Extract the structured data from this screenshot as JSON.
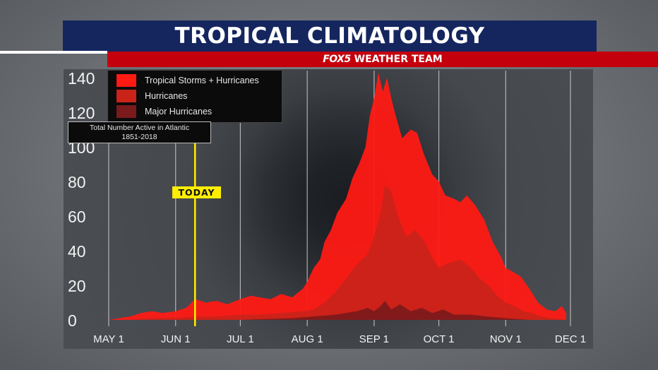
{
  "header": {
    "title": "TROPICAL CLIMATOLOGY",
    "logo": "FOX5",
    "subtitle": "WEATHER TEAM"
  },
  "info_box": {
    "line1": "Total Number Active in Atlantic",
    "line2": "1851-2018"
  },
  "today_label": "TODAY",
  "colors": {
    "title_bg": "#15265f",
    "subtitle_bg": "#c4000d",
    "today": "#ffee00",
    "tropical_storms_hurricanes": "#ff1a14",
    "hurricanes": "#c9231a",
    "major_hurricanes": "#7a1a1c"
  },
  "chart_data": {
    "type": "area",
    "x_ticks": [
      "MAY 1",
      "JUN 1",
      "JUL 1",
      "AUG 1",
      "SEP 1",
      "OCT 1",
      "NOV 1",
      "DEC 1"
    ],
    "x_tick_days": [
      0,
      31,
      61,
      92,
      123,
      153,
      184,
      214
    ],
    "y_ticks": [
      "0",
      "20",
      "40",
      "60",
      "80",
      "100",
      "120",
      "140"
    ],
    "ylim": [
      0,
      140
    ],
    "xlim": [
      -4,
      214
    ],
    "today_day": 40,
    "grid": "vertical lines at month starts",
    "legend_position": "top-left",
    "series": [
      {
        "name": "Tropical Storms + Hurricanes",
        "color": "#ff1a14",
        "x": [
          0,
          5,
          10,
          15,
          20,
          25,
          31,
          36,
          40,
          45,
          50,
          55,
          61,
          66,
          70,
          75,
          80,
          85,
          90,
          92,
          95,
          98,
          100,
          103,
          106,
          110,
          113,
          116,
          119,
          121,
          123,
          125,
          127,
          129,
          131,
          133,
          136,
          140,
          143,
          146,
          150,
          153,
          156,
          160,
          163,
          166,
          170,
          174,
          178,
          182,
          184,
          187,
          191,
          195,
          199,
          203,
          207,
          210,
          212
        ],
        "values": [
          0,
          1,
          2,
          4,
          5,
          4,
          5,
          7,
          12,
          10,
          11,
          9,
          12,
          14,
          13,
          12,
          15,
          13,
          18,
          22,
          30,
          35,
          45,
          52,
          62,
          70,
          82,
          90,
          100,
          118,
          128,
          143,
          132,
          140,
          128,
          118,
          105,
          110,
          108,
          96,
          84,
          80,
          72,
          70,
          68,
          72,
          66,
          58,
          45,
          36,
          30,
          28,
          25,
          18,
          10,
          6,
          5,
          8,
          4
        ]
      },
      {
        "name": "Hurricanes",
        "color": "#c9231a",
        "x": [
          0,
          10,
          20,
          31,
          40,
          50,
          61,
          70,
          80,
          90,
          95,
          100,
          105,
          110,
          115,
          120,
          123,
          126,
          128,
          131,
          134,
          138,
          142,
          146,
          150,
          153,
          158,
          163,
          168,
          172,
          176,
          180,
          184,
          188,
          192,
          196,
          200,
          205,
          212
        ],
        "values": [
          0,
          0,
          1,
          1,
          2,
          2,
          3,
          3,
          4,
          5,
          6,
          10,
          16,
          24,
          32,
          38,
          48,
          62,
          78,
          74,
          60,
          48,
          52,
          46,
          36,
          30,
          33,
          35,
          30,
          24,
          20,
          14,
          10,
          8,
          5,
          4,
          2,
          1,
          0
        ]
      },
      {
        "name": "Major Hurricanes",
        "color": "#7a1a1c",
        "x": [
          0,
          31,
          61,
          85,
          95,
          105,
          115,
          120,
          123,
          126,
          128,
          131,
          135,
          140,
          145,
          150,
          155,
          160,
          168,
          175,
          184,
          195,
          212
        ],
        "values": [
          0,
          0,
          0,
          1,
          2,
          3,
          5,
          7,
          5,
          8,
          11,
          6,
          9,
          5,
          7,
          4,
          6,
          3,
          3,
          2,
          1,
          0,
          0
        ]
      }
    ]
  }
}
